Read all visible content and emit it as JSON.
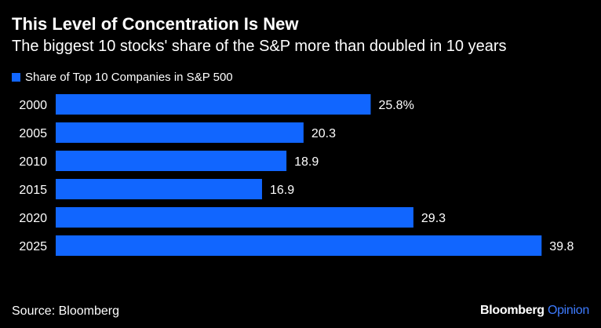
{
  "header": {
    "title": "This Level of Concentration Is New",
    "subtitle": "The biggest 10 stocks' share of the S&P more than doubled in 10 years"
  },
  "legend": {
    "label": "Share of Top 10 Companies in S&P 500"
  },
  "footer": {
    "source": "Source: Bloomberg",
    "brand": "Bloomberg",
    "brand_accent": "Opinion"
  },
  "colors": {
    "background": "#000000",
    "bar": "#1166ff",
    "text": "#ffffff",
    "accent": "#3d7bff"
  },
  "chart_data": {
    "type": "bar",
    "orientation": "horizontal",
    "title": "This Level of Concentration Is New",
    "subtitle": "The biggest 10 stocks' share of the S&P more than doubled in 10 years",
    "xlabel": "",
    "ylabel": "",
    "xlim": [
      0,
      40
    ],
    "grid": false,
    "legend_position": "top-left",
    "categories": [
      "2000",
      "2005",
      "2010",
      "2015",
      "2020",
      "2025"
    ],
    "series": [
      {
        "name": "Share of Top 10 Companies in S&P 500",
        "values": [
          25.8,
          20.3,
          18.9,
          16.9,
          29.3,
          39.8
        ],
        "labels": [
          "25.8%",
          "20.3",
          "18.9",
          "16.9",
          "29.3",
          "39.8"
        ]
      }
    ]
  }
}
